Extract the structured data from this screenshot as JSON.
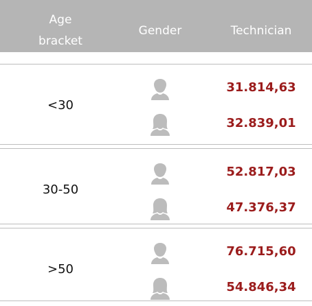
{
  "header": {
    "age_bracket": "Age bracket",
    "gender": "Gender",
    "technician": "Technician"
  },
  "rows": [
    {
      "age": "<30",
      "values": [
        "31.814,63",
        "32.839,01"
      ]
    },
    {
      "age": "30-50",
      "values": [
        "52.817,03",
        "47.376,37"
      ]
    },
    {
      "age": ">50",
      "values": [
        "76.715,60",
        "54.846,34"
      ]
    }
  ]
}
